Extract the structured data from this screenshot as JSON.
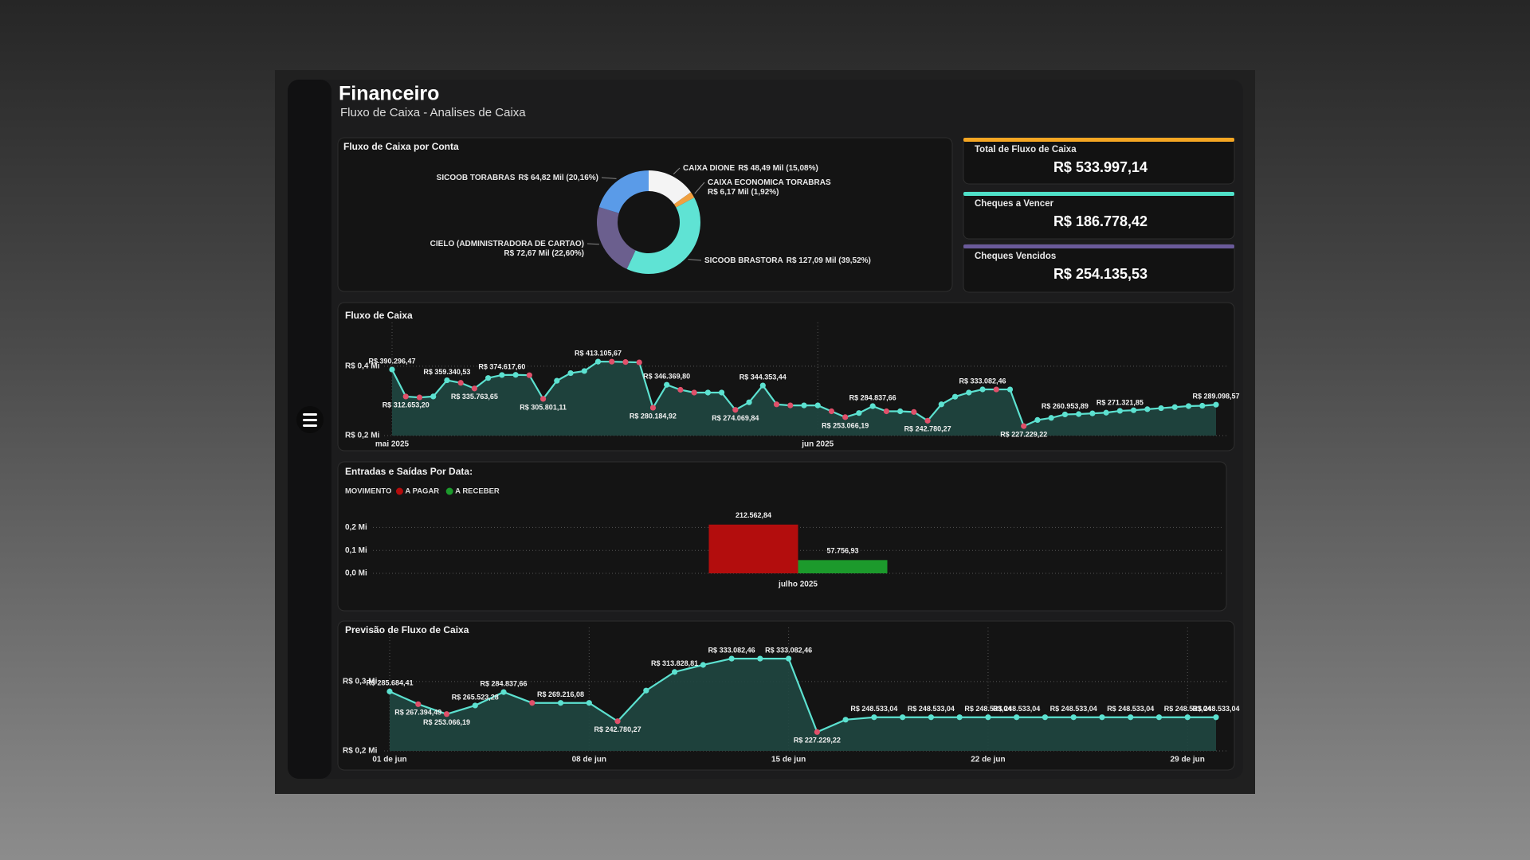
{
  "header": {
    "title": "Financeiro",
    "subtitle": "Fluxo de Caixa - Analises de Caixa"
  },
  "kpis": [
    {
      "title": "Total de Fluxo de Caixa",
      "value": "R$ 533.997,14",
      "color": "#f5a623"
    },
    {
      "title": "Cheques a Vencer",
      "value": "R$ 186.778,42",
      "color": "#4fe0c8"
    },
    {
      "title": "Cheques Vencidos",
      "value": "R$ 254.135,53",
      "color": "#6a5a9a"
    }
  ],
  "chart_data": [
    {
      "type": "donut",
      "title": "Fluxo de Caixa por Conta",
      "categories": [
        "CAIXA DIONE",
        "CAIXA ECONOMICA TORABRAS",
        "SICOOB BRASTORA",
        "CIELO (ADMINISTRADORA DE CARTAO)",
        "SICOOB TORABRAS"
      ],
      "values": [
        15.08,
        1.92,
        39.52,
        22.6,
        20.16
      ],
      "value_labels": [
        "R$ 48,49 Mil (15,08%)",
        "R$ 6,17 Mil (1,92%)",
        "R$ 127,09 Mil (39,52%)",
        "R$ 72,67 Mil (22,60%)",
        "R$ 64,82 Mil (20,16%)"
      ],
      "colors": [
        "#f4f4f4",
        "#f0a040",
        "#5fe3d4",
        "#6b5f8e",
        "#5a9be8"
      ]
    },
    {
      "type": "line",
      "title": "Fluxo de Caixa",
      "categories": [
        "mai 2025",
        null,
        null,
        null,
        null,
        null,
        null,
        null,
        null,
        null,
        null,
        null,
        null,
        null,
        null,
        null,
        null,
        null,
        null,
        null,
        null,
        null,
        null,
        null,
        null,
        null,
        null,
        null,
        null,
        null,
        null,
        "jun 2025",
        null,
        null,
        null,
        null,
        null,
        null,
        null,
        null,
        null,
        null,
        null,
        null,
        null,
        null,
        null,
        null,
        null,
        null,
        null,
        null,
        null,
        null,
        null,
        null,
        null,
        null,
        null,
        null,
        null
      ],
      "values": [
        390296.47,
        312653.2,
        309900,
        312700,
        359340.53,
        352000,
        335763.65,
        366000,
        374617.6,
        375000,
        374000,
        305801.11,
        358000,
        380000,
        386000,
        413105.67,
        413000,
        412000,
        411000,
        280184.92,
        346369.8,
        332000,
        324000,
        324000,
        324000,
        274069.84,
        296000,
        344353.44,
        290000,
        287000,
        287000,
        287000,
        270000,
        253066.19,
        265000,
        284837.66,
        270000,
        270000,
        268000,
        242780.27,
        290000,
        312000,
        324000,
        333082.46,
        333000,
        333000,
        227229.22,
        245000,
        251000,
        260953.89,
        262000,
        264000,
        266000,
        271321.85,
        273000,
        276000,
        279000,
        282000,
        285000,
        286000,
        289098.57
      ],
      "value_labels": [
        "R$ 390.296,47",
        "R$ 312.653,20",
        null,
        null,
        "R$ 359.340,53",
        null,
        "R$ 335.763,65",
        null,
        "R$ 374.617,60",
        null,
        null,
        "R$ 305.801,11",
        null,
        null,
        null,
        "R$ 413.105,67",
        null,
        null,
        null,
        "R$ 280.184,92",
        "R$ 346.369,80",
        null,
        null,
        null,
        null,
        "R$ 274.069,84",
        null,
        "R$ 344.353,44",
        null,
        null,
        null,
        null,
        null,
        "R$ 253.066,19",
        null,
        "R$ 284.837,66",
        null,
        null,
        null,
        "R$ 242.780,27",
        null,
        null,
        null,
        "R$ 333.082,46",
        null,
        null,
        "R$ 227.229,22",
        null,
        null,
        "R$ 260.953,89",
        null,
        null,
        null,
        "R$ 271.321,85",
        null,
        null,
        null,
        null,
        null,
        null,
        "R$ 289.098,57"
      ],
      "ylim": [
        200000,
        480000
      ],
      "yticks": [
        {
          "value": 200000,
          "label": "R$ 0,2 Mi"
        },
        {
          "value": 400000,
          "label": "R$ 0,4 Mi"
        }
      ],
      "grid": true,
      "color": "#5ce1d0",
      "area_color": "#1f4640",
      "up_marker_color": "#5ce1d0",
      "down_marker_color": "#e0506a"
    },
    {
      "type": "grouped-bar",
      "title": "Entradas e Saídas Por Data:",
      "legend_title": "MOVIMENTO",
      "legend": "top-left",
      "categories": [
        "julho 2025"
      ],
      "series": [
        {
          "name": "A PAGAR",
          "color": "#b30d0d",
          "values": [
            212562.84
          ],
          "value_labels": [
            "212.562,84"
          ]
        },
        {
          "name": "A RECEBER",
          "color": "#1c9a2c",
          "values": [
            57756.93
          ],
          "value_labels": [
            "57.756,93"
          ]
        }
      ],
      "ylim": [
        0,
        250000
      ],
      "yticks": [
        {
          "value": 0,
          "label": "0,0 Mi"
        },
        {
          "value": 100000,
          "label": "0,1 Mi"
        },
        {
          "value": 200000,
          "label": "0,2 Mi"
        }
      ],
      "grid": true
    },
    {
      "type": "line",
      "title": "Previsão de Fluxo de Caixa",
      "categories": [
        "01 de jun",
        null,
        null,
        null,
        null,
        null,
        null,
        "08 de jun",
        null,
        null,
        null,
        null,
        null,
        null,
        "15 de jun",
        null,
        null,
        null,
        null,
        null,
        null,
        "22 de jun",
        null,
        null,
        null,
        null,
        null,
        null,
        "29 de jun",
        null
      ],
      "values": [
        285684.41,
        267394.49,
        253066.19,
        265523.28,
        284837.66,
        269216.08,
        269216.08,
        269216.08,
        242780.27,
        287000,
        313828.81,
        324000,
        333082.46,
        333082.46,
        333082.46,
        227229.22,
        245000,
        248533.04,
        248533.04,
        248533.04,
        248533.04,
        248533.04,
        248533.04,
        248533.04,
        248533.04,
        248533.04,
        248533.04,
        248533.04,
        248533.04,
        248533.04
      ],
      "value_labels": [
        "R$ 285.684,41",
        "R$ 267.394,49",
        "R$ 253.066,19",
        "R$ 265.523,28",
        "R$ 284.837,66",
        null,
        "R$ 269.216,08",
        null,
        "R$ 242.780,27",
        null,
        "R$ 313.828,81",
        null,
        "R$ 333.082,46",
        null,
        "R$ 333.082,46",
        "R$ 227.229,22",
        null,
        "R$ 248.533,04",
        null,
        "R$ 248.533,04",
        null,
        "R$ 248.533,04",
        "R$ 248.533,04",
        null,
        "R$ 248.533,04",
        null,
        "R$ 248.533,04",
        null,
        "R$ 248.533,04",
        "R$ 248.533,04"
      ],
      "ylim": [
        200000,
        355000
      ],
      "yticks": [
        {
          "value": 200000,
          "label": "R$ 0,2 Mi"
        },
        {
          "value": 300000,
          "label": "R$ 0,3 Mi"
        }
      ],
      "grid": true,
      "color": "#5ce1d0",
      "area_color": "#1f4640",
      "up_marker_color": "#5ce1d0",
      "down_marker_color": "#e0506a"
    }
  ]
}
